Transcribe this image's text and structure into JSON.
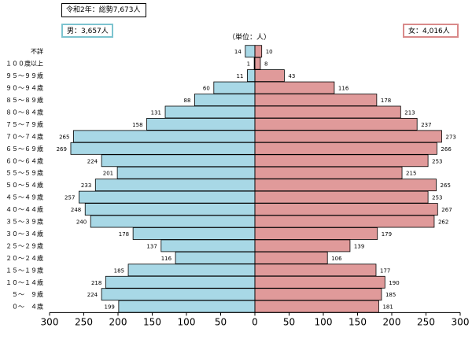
{
  "header": {
    "total_label": "令和2年：総勢7,673人",
    "male_label": "男：3,657人",
    "female_label": "女：4,016人",
    "unit_label": "（単位：人）"
  },
  "colors": {
    "male": "#a8d8e6",
    "female": "#e09a9a",
    "male_border": "#7cc3cf",
    "female_border": "#d98a8a"
  },
  "chart_data": {
    "type": "bar",
    "orientation": "horizontal-population-pyramid",
    "title": "令和2年：総勢7,673人",
    "unit": "（単位：人）",
    "categories": [
      "不詳",
      "１００歳以上",
      "９５～９９歳",
      "９０～９４歳",
      "８５～８９歳",
      "８０～８４歳",
      "７５～７９歳",
      "７０～７４歳",
      "６５～６９歳",
      "６０～６４歳",
      "５５～５９歳",
      "５０～５４歳",
      "４５～４９歳",
      "４０～４４歳",
      "３５～３９歳",
      "３０～３４歳",
      "２５～２９歳",
      "２０～２４歳",
      "１５～１９歳",
      "１０～１４歳",
      "５～　９歳",
      "０～　４歳"
    ],
    "series": [
      {
        "name": "男",
        "values": [
          14,
          1,
          11,
          60,
          88,
          131,
          158,
          265,
          269,
          224,
          201,
          233,
          257,
          248,
          240,
          178,
          137,
          116,
          185,
          218,
          224,
          199
        ]
      },
      {
        "name": "女",
        "values": [
          10,
          8,
          43,
          116,
          178,
          213,
          237,
          273,
          266,
          253,
          215,
          265,
          253,
          267,
          262,
          179,
          139,
          106,
          177,
          190,
          185,
          181
        ]
      }
    ],
    "xlim": [
      -300,
      300
    ],
    "xticks": [
      300,
      250,
      200,
      150,
      100,
      50,
      0,
      50,
      100,
      150,
      200,
      250,
      300
    ]
  }
}
